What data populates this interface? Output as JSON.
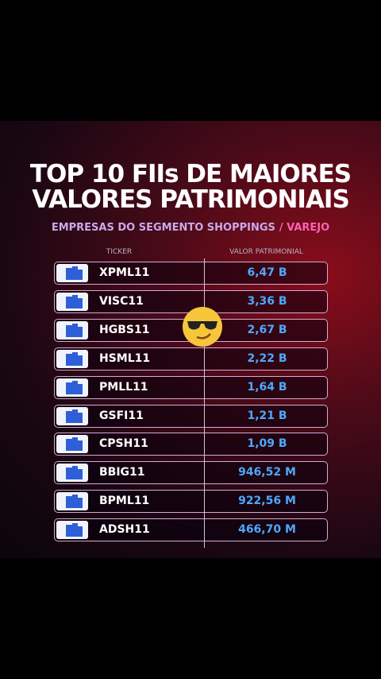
{
  "header": {
    "title_lines": [
      "TOP 10 FIIs DE MAIORES",
      "VALORES PATRIMONIAIS"
    ],
    "subtitle": [
      "EMPRESAS DO SEGMENTO SHOPPINGS",
      "/ VAREJO"
    ]
  },
  "table": {
    "columns": [
      "TICKER",
      "VALOR PATRIMONIAL"
    ],
    "rows": [
      [
        "XPML11",
        "6,47 B"
      ],
      [
        "VISC11",
        "3,36 B"
      ],
      [
        "HGBS11",
        "2,67 B"
      ],
      [
        "HSML11",
        "2,22 B"
      ],
      [
        "PMLL11",
        "1,64 B"
      ],
      [
        "GSFI11",
        "1,21 B"
      ],
      [
        "CPSH11",
        "1,09 B"
      ],
      [
        "BBIG11",
        "946,52 M"
      ],
      [
        "BPML11",
        "922,56 M"
      ],
      [
        "ADSH11",
        "466,70 M"
      ]
    ]
  }
}
